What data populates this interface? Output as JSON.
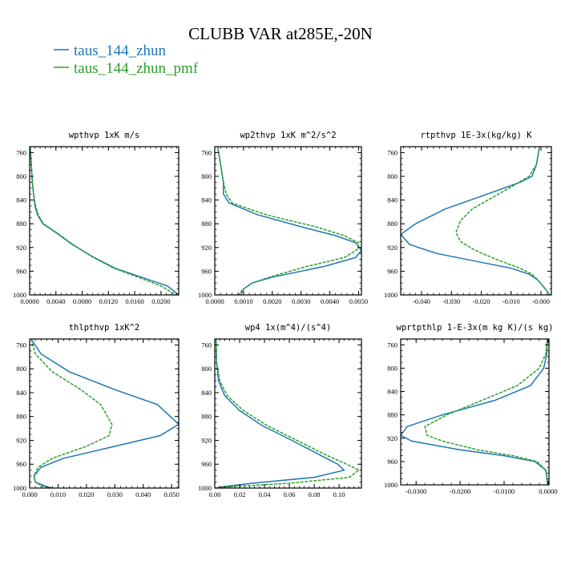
{
  "figure": {
    "title": "CLUBB VAR at285E,-20N",
    "legend": [
      {
        "name": "taus_144_zhun",
        "color": "#1f77b4",
        "dash": "solid"
      },
      {
        "name": "taus_144_zhun_pmf",
        "color": "#2ca02c",
        "dash": "dashed"
      }
    ]
  },
  "chart_data": [
    {
      "type": "line",
      "title": "wpthvp  1xK m/s",
      "xlim": [
        0,
        0.0227
      ],
      "ylim": [
        1000,
        750
      ],
      "xticks": [
        0,
        0.004,
        0.008,
        0.012,
        0.016,
        0.02
      ],
      "xtick_labels": [
        "0.0000",
        "0.0040",
        "0.0080",
        "0.0120",
        "0.0160",
        "0.0200"
      ],
      "yticks": [
        760,
        800,
        840,
        880,
        920,
        960,
        1000
      ],
      "ytick_labels": [
        "760",
        "800",
        "840",
        "880",
        "920",
        "960",
        "1000"
      ],
      "series": [
        {
          "name": "taus_144_zhun",
          "x": [
            0.0001,
            0.0002,
            0.0003,
            0.0004,
            0.0006,
            0.0008,
            0.0012,
            0.002,
            0.004,
            0.0065,
            0.0095,
            0.013,
            0.017,
            0.021,
            0.0227
          ],
          "y": [
            750,
            770,
            790,
            810,
            830,
            850,
            865,
            880,
            895,
            915,
            935,
            955,
            970,
            985,
            1000
          ]
        },
        {
          "name": "taus_144_zhun_pmf",
          "x": [
            0.0001,
            0.0002,
            0.0003,
            0.0004,
            0.0006,
            0.0009,
            0.0013,
            0.0021,
            0.0041,
            0.0066,
            0.0094,
            0.0128,
            0.0165,
            0.02,
            0.0223
          ],
          "y": [
            750,
            770,
            790,
            810,
            830,
            850,
            865,
            880,
            895,
            915,
            935,
            955,
            970,
            985,
            1000
          ]
        }
      ]
    },
    {
      "type": "line",
      "title": "wp2thvp  1xK m^2/s^2",
      "xlim": [
        0,
        0.0051
      ],
      "ylim": [
        1000,
        750
      ],
      "xticks": [
        0,
        0.001,
        0.002,
        0.003,
        0.004,
        0.005
      ],
      "xtick_labels": [
        "0.0000",
        "0.0010",
        "0.0020",
        "0.0030",
        "0.0040",
        "0.0050"
      ],
      "yticks": [
        760,
        800,
        840,
        880,
        920,
        960,
        1000
      ],
      "ytick_labels": [
        "760",
        "800",
        "840",
        "880",
        "920",
        "960",
        "1000"
      ],
      "series": [
        {
          "name": "taus_144_zhun",
          "x": [
            0.0001,
            0.0002,
            0.0003,
            0.0003,
            0.0005,
            0.0015,
            0.003,
            0.0042,
            0.0049,
            0.0051,
            0.0049,
            0.0038,
            0.002,
            0.0013,
            0.001,
            0.0009
          ],
          "y": [
            750,
            780,
            810,
            830,
            845,
            865,
            885,
            900,
            912,
            925,
            937,
            952,
            970,
            980,
            990,
            1000
          ]
        },
        {
          "name": "taus_144_zhun_pmf",
          "x": [
            0.0001,
            0.0002,
            0.0003,
            0.0004,
            0.0006,
            0.0018,
            0.0035,
            0.0045,
            0.005,
            0.005,
            0.0045,
            0.0032,
            0.0019,
            0.0013,
            0.001,
            0.0008
          ],
          "y": [
            750,
            780,
            810,
            830,
            845,
            865,
            885,
            900,
            912,
            922,
            937,
            952,
            970,
            980,
            990,
            1000
          ]
        }
      ]
    },
    {
      "type": "line",
      "title": "rtpthvp  1E-3x(kg/kg) K",
      "xlim": [
        -0.047,
        0.0035
      ],
      "ylim": [
        1000,
        750
      ],
      "xticks": [
        -0.04,
        -0.03,
        -0.02,
        -0.01,
        0.0
      ],
      "xtick_labels": [
        "-0.040",
        "-0.030",
        "-0.020",
        "-0.010",
        "-0.000"
      ],
      "yticks": [
        760,
        800,
        840,
        880,
        920,
        960,
        1000
      ],
      "ytick_labels": [
        "760",
        "800",
        "840",
        "880",
        "920",
        "960",
        "1000"
      ],
      "series": [
        {
          "name": "taus_144_zhun",
          "x": [
            -0.0005,
            -0.0015,
            -0.003,
            -0.007,
            -0.018,
            -0.032,
            -0.042,
            -0.047,
            -0.044,
            -0.035,
            -0.02,
            -0.01,
            -0.004,
            -0.001,
            0.0015,
            0.003
          ],
          "y": [
            750,
            780,
            800,
            810,
            830,
            855,
            880,
            898,
            915,
            930,
            945,
            955,
            965,
            975,
            990,
            1000
          ]
        },
        {
          "name": "taus_144_zhun_pmf",
          "x": [
            -0.0005,
            -0.0015,
            -0.004,
            -0.009,
            -0.016,
            -0.023,
            -0.027,
            -0.0285,
            -0.027,
            -0.022,
            -0.015,
            -0.007,
            -0.003,
            -0.001,
            0.0015,
            0.003
          ],
          "y": [
            750,
            780,
            800,
            815,
            835,
            855,
            875,
            895,
            910,
            925,
            940,
            955,
            965,
            975,
            990,
            1000
          ]
        }
      ]
    },
    {
      "type": "line",
      "title": "thlpthvp  1xK^2",
      "xlim": [
        0,
        0.0525
      ],
      "ylim": [
        1000,
        750
      ],
      "xticks": [
        0,
        0.01,
        0.02,
        0.03,
        0.04,
        0.05
      ],
      "xtick_labels": [
        "0.000",
        "0.010",
        "0.020",
        "0.030",
        "0.040",
        "0.050"
      ],
      "yticks": [
        760,
        800,
        840,
        880,
        920,
        960,
        1000
      ],
      "ytick_labels": [
        "760",
        "800",
        "840",
        "880",
        "920",
        "960",
        "1000"
      ],
      "series": [
        {
          "name": "taus_144_zhun",
          "x": [
            0.0005,
            0.004,
            0.014,
            0.03,
            0.045,
            0.0525,
            0.046,
            0.03,
            0.012,
            0.004,
            0.0015,
            0.002,
            0.005,
            0.008
          ],
          "y": [
            750,
            775,
            805,
            835,
            860,
            893,
            912,
            930,
            950,
            965,
            980,
            990,
            996,
            1000
          ]
        },
        {
          "name": "taus_144_zhun_pmf",
          "x": [
            0.0005,
            0.002,
            0.008,
            0.018,
            0.025,
            0.029,
            0.028,
            0.02,
            0.008,
            0.003,
            0.0015,
            0.002,
            0.004,
            0.006
          ],
          "y": [
            750,
            775,
            805,
            835,
            860,
            893,
            912,
            930,
            950,
            965,
            980,
            990,
            996,
            1000
          ]
        }
      ]
    },
    {
      "type": "line",
      "title": "wp4  1x(m^4)/(s^4)",
      "xlim": [
        0,
        0.118
      ],
      "ylim": [
        1000,
        750
      ],
      "xticks": [
        0,
        0.02,
        0.04,
        0.06,
        0.08,
        0.1
      ],
      "xtick_labels": [
        "0.00",
        "0.02",
        "0.04",
        "0.06",
        "0.08",
        "0.10"
      ],
      "yticks": [
        760,
        800,
        840,
        880,
        920,
        960,
        1000
      ],
      "ytick_labels": [
        "760",
        "800",
        "840",
        "880",
        "920",
        "960",
        "1000"
      ],
      "series": [
        {
          "name": "taus_144_zhun",
          "x": [
            0.001,
            0.0015,
            0.003,
            0.008,
            0.02,
            0.038,
            0.062,
            0.085,
            0.099,
            0.104,
            0.08,
            0.03,
            0.005,
            0.001
          ],
          "y": [
            750,
            790,
            820,
            845,
            870,
            895,
            920,
            945,
            960,
            970,
            982,
            992,
            998,
            1000
          ]
        },
        {
          "name": "taus_144_zhun_pmf",
          "x": [
            0.001,
            0.0015,
            0.004,
            0.01,
            0.023,
            0.042,
            0.066,
            0.09,
            0.106,
            0.116,
            0.108,
            0.06,
            0.01,
            0.001
          ],
          "y": [
            750,
            790,
            820,
            845,
            870,
            895,
            920,
            945,
            960,
            970,
            982,
            992,
            998,
            1000
          ]
        }
      ]
    },
    {
      "type": "line",
      "title": "wprtpthlp  1-E-3x(m kg K)/(s kg)",
      "xlim": [
        -0.0335,
        0.0002
      ],
      "ylim": [
        1000,
        750
      ],
      "xticks": [
        -0.03,
        -0.02,
        -0.01,
        0.0
      ],
      "xtick_labels": [
        "-0.0300",
        "-0.0200",
        "-0.0100",
        "0.0000"
      ],
      "yticks": [
        760,
        800,
        840,
        880,
        920,
        960,
        1000
      ],
      "ytick_labels": [
        "760",
        "800",
        "840",
        "880",
        "920",
        "960",
        "1000"
      ],
      "series": [
        {
          "name": "taus_144_zhun",
          "x": [
            -0.0002,
            -0.0003,
            -0.001,
            -0.004,
            -0.012,
            -0.024,
            -0.032,
            -0.0335,
            -0.031,
            -0.02,
            -0.01,
            -0.003,
            -0.0005,
            -0.0001
          ],
          "y": [
            750,
            775,
            800,
            830,
            855,
            880,
            900,
            915,
            925,
            940,
            950,
            960,
            975,
            1000
          ]
        },
        {
          "name": "taus_144_zhun_pmf",
          "x": [
            -0.0002,
            -0.0005,
            -0.002,
            -0.007,
            -0.015,
            -0.023,
            -0.028,
            -0.0275,
            -0.024,
            -0.016,
            -0.008,
            -0.0025,
            -0.0005,
            -0.0001
          ],
          "y": [
            750,
            775,
            800,
            830,
            855,
            880,
            900,
            915,
            925,
            940,
            950,
            960,
            975,
            1000
          ]
        }
      ]
    }
  ]
}
